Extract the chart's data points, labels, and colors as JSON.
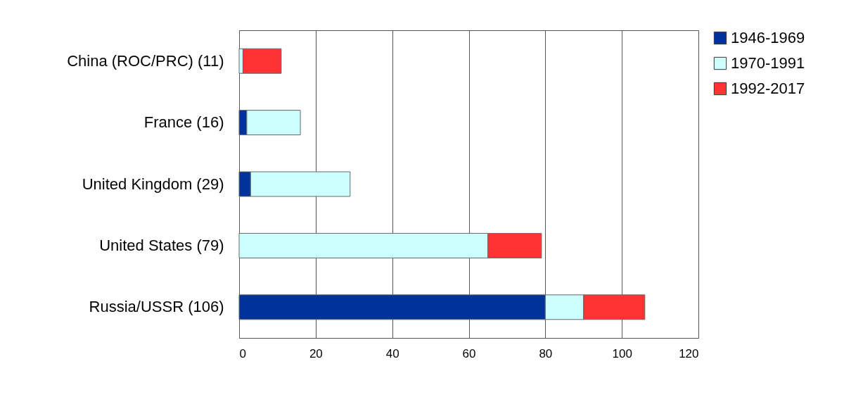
{
  "chart_data": {
    "type": "bar",
    "orientation": "horizontal",
    "stacked": true,
    "categories": [
      "China (ROC/PRC) (11)",
      "France (16)",
      "United Kingdom (29)",
      "United States (79)",
      "Russia/USSR (106)"
    ],
    "series": [
      {
        "name": "1946-1969",
        "color": "#003399",
        "values": [
          0,
          2,
          3,
          0,
          80
        ]
      },
      {
        "name": "1970-1991",
        "color": "#ccffff",
        "values": [
          1,
          14,
          26,
          65,
          10
        ]
      },
      {
        "name": "1992-2017",
        "color": "#ff3333",
        "values": [
          10,
          0,
          0,
          14,
          16
        ]
      }
    ],
    "xlim": [
      0,
      120
    ],
    "xticks": [
      0,
      20,
      40,
      60,
      80,
      100,
      120
    ],
    "grid": "x",
    "legend": "right"
  }
}
